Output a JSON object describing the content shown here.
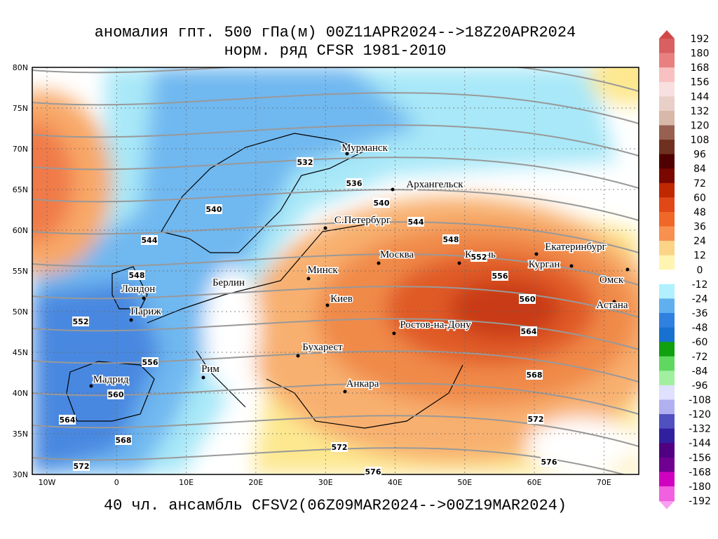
{
  "header": {
    "title_lines": [
      "аномалия гпт. 500 гПа(м) 00Z11APR2024-->18Z20APR2024",
      "норм. ряд CFSR 1981-2010"
    ]
  },
  "footer": "40 чл. ансамбль CFSV2(06Z09MAR2024-->00Z19MAR2024)",
  "lat_labels": [
    "80N",
    "75N",
    "70N",
    "65N",
    "60N",
    "55N",
    "50N",
    "45N",
    "40N",
    "35N",
    "30N"
  ],
  "lon_labels": [
    "10W",
    "0",
    "10E",
    "20E",
    "30E",
    "40E",
    "50E",
    "60E",
    "70E"
  ],
  "cities": [
    "Мурманск",
    "Архангельск",
    "С.Петербург",
    "Москва",
    "Казань",
    "Екатеринбург",
    "Курган",
    "Омск",
    "Астана",
    "Минск",
    "Берлин",
    "Лондон",
    "Париж",
    "Киев",
    "Ростов-на-Дону",
    "Бухарест",
    "Рим",
    "Анкара",
    "Мадрид"
  ],
  "contour_labels": [
    532,
    536,
    540,
    540,
    544,
    544,
    548,
    548,
    552,
    552,
    556,
    556,
    560,
    560,
    564,
    564,
    568,
    568,
    572,
    572,
    572,
    576,
    576
  ],
  "colorbar_labels": [
    192,
    180,
    168,
    156,
    144,
    132,
    120,
    108,
    96,
    84,
    72,
    60,
    48,
    36,
    24,
    12,
    0,
    -12,
    -24,
    -36,
    -48,
    -60,
    -72,
    -84,
    -96,
    -108,
    -120,
    -132,
    -144,
    -156,
    -168,
    -180,
    -192
  ]
}
